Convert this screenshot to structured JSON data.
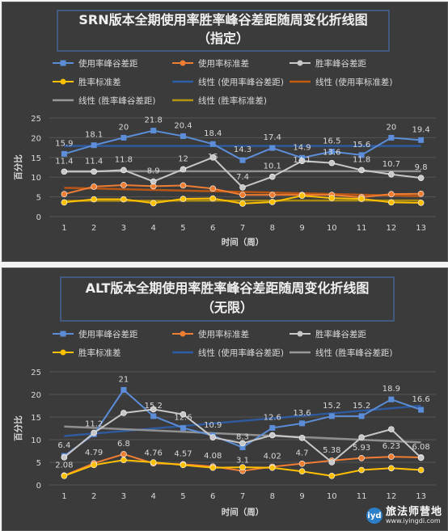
{
  "colors": {
    "blue": "#5b8dd9",
    "orange": "#ef7d32",
    "gray": "#c8c8c8",
    "yellow": "#ffc000",
    "trend_blue": "#2e5ea8",
    "trend_orange": "#c55a11",
    "trend_gray": "#9a9a9a",
    "trend_yellow": "#b59410",
    "background": "#3b3b3b",
    "grid": "#555555",
    "text": "#d9d9d9"
  },
  "chart_data": [
    {
      "type": "line",
      "title_line1": "SRN版本全期使用率胜率峰谷差距随周变化折线图",
      "title_line2": "（指定）",
      "xlabel": "时间（周）",
      "ylabel": "百分比",
      "ylim": [
        0,
        25
      ],
      "yticks": [
        0,
        5,
        10,
        15,
        20,
        25
      ],
      "x": [
        1,
        2,
        3,
        4,
        5,
        6,
        7,
        8,
        9,
        10,
        11,
        12,
        13
      ],
      "grid": true,
      "legend_position": "top",
      "series": [
        {
          "name": "使用率峰谷差距",
          "color_key": "blue",
          "marker": "square",
          "values": [
            15.9,
            18.1,
            20,
            21.8,
            20.4,
            18.4,
            14.3,
            17.4,
            14.9,
            16.5,
            15.6,
            20,
            19.4
          ],
          "labels": [
            "15.9",
            "18.1",
            "20",
            "21.8",
            "20.4",
            "18.4",
            "14.3",
            "17.4",
            "14.9",
            "16.5",
            "15.6",
            "20",
            "19.4"
          ]
        },
        {
          "name": "使用率标准差",
          "color_key": "orange",
          "marker": "circle",
          "values": [
            5.7,
            7.6,
            8.0,
            7.7,
            7.9,
            7.1,
            5.5,
            5.5,
            5.5,
            5.5,
            4.9,
            5.7,
            5.8
          ],
          "labels": null
        },
        {
          "name": "胜率峰谷差距",
          "color_key": "gray",
          "marker": "circle",
          "values": [
            11.4,
            11.4,
            11.8,
            8.9,
            12,
            15,
            7.4,
            10.1,
            14.1,
            13.6,
            11.8,
            10.7,
            9.8
          ],
          "labels": [
            "11.4",
            "11.4",
            "11.8",
            "8.9",
            "12",
            "15",
            "7.4",
            "10.1",
            "14.1",
            "13.6",
            "11.8",
            "10.7",
            "9.8"
          ]
        },
        {
          "name": "胜率标准差",
          "color_key": "yellow",
          "marker": "circle",
          "values": [
            3.6,
            4.4,
            4.4,
            3.4,
            4.5,
            4.6,
            3.3,
            3.7,
            5.3,
            4.7,
            4.5,
            3.6,
            3.5
          ],
          "labels": null
        }
      ],
      "trendlines": [
        {
          "name": "线性 (使用率峰谷差距)",
          "color_key": "trend_blue",
          "from": 17.9,
          "to": 17.9
        },
        {
          "name": "线性 (使用率标准差)",
          "color_key": "trend_orange",
          "from": 7.3,
          "to": 5.2
        },
        {
          "name": "线性 (胜率峰谷差距)",
          "color_key": "trend_gray",
          "from": 11.5,
          "to": 11.5
        },
        {
          "name": "线性 (胜率标准差)",
          "color_key": "trend_yellow",
          "from": 4.0,
          "to": 4.1
        }
      ]
    },
    {
      "type": "line",
      "title_line1": "ALT版本全期使用率胜率峰谷差距随周变化折线图",
      "title_line2": "（无限）",
      "xlabel": "时间（周）",
      "ylabel": "百分比",
      "ylim": [
        0,
        25
      ],
      "yticks": [
        0,
        5,
        10,
        15,
        20,
        25
      ],
      "x": [
        1,
        2,
        3,
        4,
        5,
        6,
        7,
        8,
        9,
        10,
        11,
        12,
        13
      ],
      "grid": true,
      "legend_position": "top",
      "series": [
        {
          "name": "使用率峰谷差距",
          "color_key": "blue",
          "marker": "square",
          "values": [
            6.4,
            11.2,
            21,
            15.2,
            12.6,
            10.9,
            8.3,
            12.6,
            13.6,
            15.2,
            15.2,
            18.9,
            16.6
          ],
          "labels": [
            "6.4",
            "11.2",
            "21",
            "15.2",
            "12.6",
            "10.9",
            "8.3",
            "12.6",
            "13.6",
            "15.2",
            "15.2",
            "18.9",
            "16.6"
          ]
        },
        {
          "name": "使用率标准差",
          "color_key": "orange",
          "marker": "circle",
          "values": [
            2.08,
            4.79,
            6.8,
            4.76,
            4.57,
            4.08,
            3.1,
            4.02,
            4.7,
            5.38,
            5.93,
            6.23,
            6.08
          ],
          "labels": [
            "2.08",
            "4.79",
            "6.8",
            "4.76",
            "4.57",
            "4.08",
            "3.1",
            "4.02",
            "4.7",
            "5.38",
            "5.93",
            "6.23",
            "6.08"
          ]
        },
        {
          "name": "胜率峰谷差距",
          "color_key": "gray",
          "marker": "circle",
          "values": [
            6.1,
            11.5,
            15.9,
            16.7,
            15.6,
            10.5,
            9.2,
            11.0,
            10.4,
            5.0,
            10.5,
            12.3,
            6.0
          ],
          "labels": null
        },
        {
          "name": "胜率标准差",
          "color_key": "yellow",
          "marker": "circle",
          "values": [
            2.0,
            4.4,
            5.5,
            5.0,
            4.4,
            3.8,
            3.9,
            3.8,
            3.0,
            2.0,
            3.3,
            3.7,
            3.3
          ],
          "labels": null
        }
      ],
      "trendlines": [
        {
          "name": "线性 (使用率峰谷差距)",
          "color_key": "trend_blue",
          "from": 10.8,
          "to": 17.5
        },
        {
          "name": "线性 (胜率峰谷差距)",
          "color_key": "trend_gray",
          "from": 12.9,
          "to": 9.4
        }
      ]
    }
  ],
  "watermark": {
    "name": "旅法师营地",
    "url": "www.iyingdi.com",
    "logo": "iyd"
  }
}
